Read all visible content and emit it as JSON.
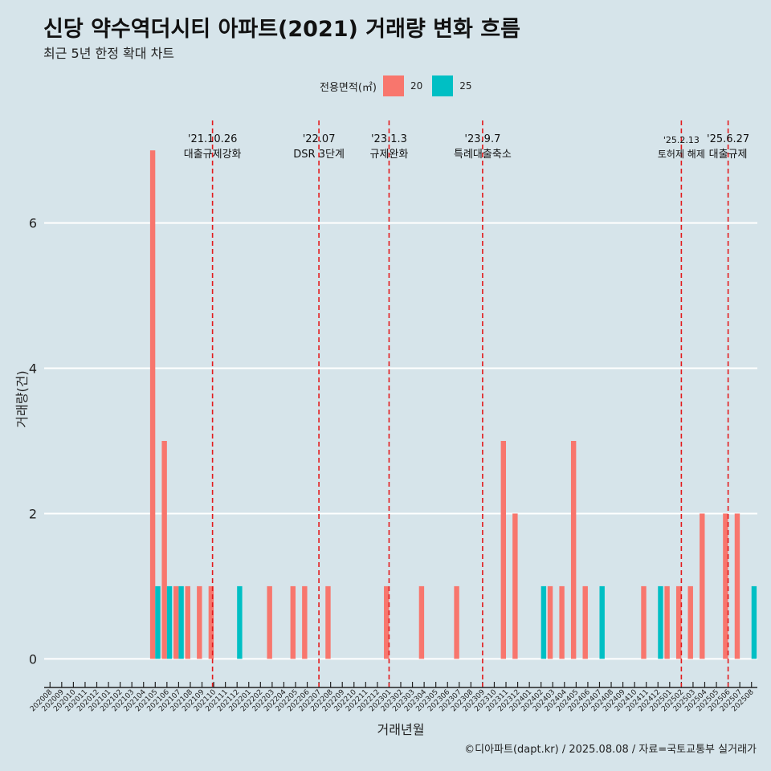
{
  "chart_data": {
    "type": "bar",
    "title": "신당 약수역더시티 아파트(2021) 거래량 변화 흐름",
    "subtitle": "최근 5년 한정 확대 차트",
    "xlabel": "거래년월",
    "ylabel": "거래량(건)",
    "caption": "©디아파트(dapt.kr) / 2025.08.08 / 자료=국토교통부 실거래가",
    "legend_title": "전용면적(㎡)",
    "legend_position": "top",
    "grid": true,
    "ylim": [
      -0.35,
      7.5
    ],
    "yticks": [
      0,
      2,
      4,
      6
    ],
    "categories": [
      "202008",
      "202009",
      "202010",
      "202011",
      "202012",
      "202101",
      "202102",
      "202103",
      "202104",
      "202105",
      "202106",
      "202107",
      "202108",
      "202109",
      "202110",
      "202111",
      "202112",
      "202201",
      "202202",
      "202203",
      "202204",
      "202205",
      "202206",
      "202207",
      "202208",
      "202209",
      "202210",
      "202211",
      "202212",
      "202301",
      "202302",
      "202303",
      "202304",
      "202305",
      "202306",
      "202307",
      "202308",
      "202309",
      "202310",
      "202311",
      "202312",
      "202401",
      "202402",
      "202403",
      "202404",
      "202405",
      "202406",
      "202407",
      "202408",
      "202409",
      "202410",
      "202411",
      "202412",
      "202501",
      "202502",
      "202503",
      "202504",
      "202505",
      "202506",
      "202507",
      "202508"
    ],
    "series": [
      {
        "name": "20",
        "color": "#f8766d",
        "values": [
          0,
          0,
          0,
          0,
          0,
          0,
          0,
          0,
          0,
          7,
          3,
          1,
          1,
          1,
          1,
          0,
          0,
          0,
          0,
          1,
          0,
          1,
          1,
          0,
          1,
          0,
          0,
          0,
          0,
          1,
          0,
          0,
          1,
          0,
          0,
          1,
          0,
          0,
          0,
          3,
          2,
          0,
          0,
          1,
          1,
          3,
          1,
          0,
          0,
          0,
          0,
          1,
          0,
          1,
          1,
          1,
          2,
          0,
          2,
          2,
          0
        ]
      },
      {
        "name": "25",
        "color": "#00bfc4",
        "values": [
          0,
          0,
          0,
          0,
          0,
          0,
          0,
          0,
          0,
          1,
          1,
          1,
          0,
          0,
          0,
          0,
          1,
          0,
          0,
          0,
          0,
          0,
          0,
          0,
          0,
          0,
          0,
          0,
          0,
          0,
          0,
          0,
          0,
          0,
          0,
          0,
          0,
          0,
          0,
          0,
          0,
          0,
          1,
          0,
          0,
          0,
          0,
          1,
          0,
          0,
          0,
          0,
          1,
          0,
          0,
          0,
          0,
          0,
          0,
          0,
          1
        ]
      }
    ],
    "events": [
      {
        "x": 14.4,
        "date": "'21.10.26",
        "label": "대출규제강화"
      },
      {
        "x": 23.5,
        "date": "'22.07",
        "label": "DSR 3단계"
      },
      {
        "x": 29.5,
        "date": "'23.1.3",
        "label": "규제완화"
      },
      {
        "x": 37.5,
        "date": "'23.9.7",
        "label": "특례대출축소"
      },
      {
        "x": 54.5,
        "date": "'25.2.13",
        "label": "토허제 해제",
        "small": true
      },
      {
        "x": 58.5,
        "date": "'25.6.27",
        "label": "대출규제"
      }
    ]
  },
  "colors": {
    "background": "#d6e4ea",
    "grid": "#ffffff",
    "event_line": "#e31a1c"
  }
}
